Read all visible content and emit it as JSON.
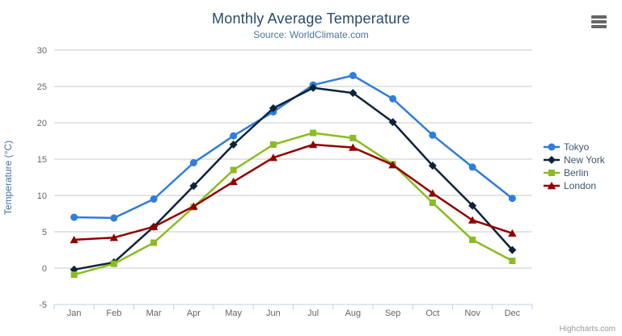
{
  "header": {
    "title": "Monthly Average Temperature",
    "subtitle": "Source: WorldClimate.com"
  },
  "menu": {
    "icon": "hamburger-icon"
  },
  "credits": {
    "label": "Highcharts.com"
  },
  "colors": {
    "grid": "#c8c8c8",
    "axis_line": "#c0d0e0",
    "tick_label": "#666666",
    "axis_title": "#4572A7",
    "legend_text": "#3E576F"
  },
  "chart_data": {
    "type": "line",
    "title": "Monthly Average Temperature",
    "subtitle": "Source: WorldClimate.com",
    "xlabel": "",
    "ylabel": "Temperature (°C)",
    "ylim": [
      -5,
      30
    ],
    "ytick_labels": [
      "-5",
      "0",
      "5",
      "10",
      "15",
      "20",
      "25",
      "30"
    ],
    "grid": true,
    "legend_position": "right",
    "categories": [
      "Jan",
      "Feb",
      "Mar",
      "Apr",
      "May",
      "Jun",
      "Jul",
      "Aug",
      "Sep",
      "Oct",
      "Nov",
      "Dec"
    ],
    "series": [
      {
        "name": "Tokyo",
        "color": "#2f7ed8",
        "marker": "circle",
        "values": [
          7.0,
          6.9,
          9.5,
          14.5,
          18.2,
          21.5,
          25.2,
          26.5,
          23.3,
          18.3,
          13.9,
          9.6
        ]
      },
      {
        "name": "New York",
        "color": "#0d233a",
        "marker": "diamond",
        "values": [
          -0.2,
          0.8,
          5.7,
          11.3,
          17.0,
          22.0,
          24.8,
          24.1,
          20.1,
          14.1,
          8.6,
          2.5
        ]
      },
      {
        "name": "Berlin",
        "color": "#8bbc21",
        "marker": "square",
        "values": [
          -0.9,
          0.6,
          3.5,
          8.4,
          13.5,
          17.0,
          18.6,
          17.9,
          14.3,
          9.0,
          3.9,
          1.0
        ]
      },
      {
        "name": "London",
        "color": "#910000",
        "marker": "triangle",
        "values": [
          3.9,
          4.2,
          5.7,
          8.5,
          11.9,
          15.2,
          17.0,
          16.6,
          14.2,
          10.3,
          6.6,
          4.8
        ]
      }
    ]
  }
}
